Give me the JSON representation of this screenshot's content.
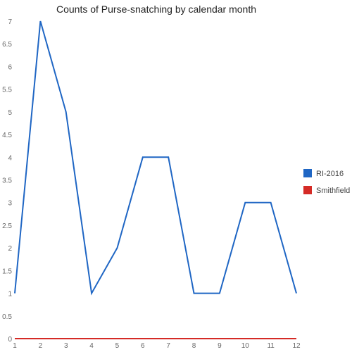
{
  "chart_data": {
    "type": "line",
    "title": "Counts of Purse-snatching by calendar month",
    "xlabel": "",
    "ylabel": "",
    "x": [
      1,
      2,
      3,
      4,
      5,
      6,
      7,
      8,
      9,
      10,
      11,
      12
    ],
    "xlim": [
      1,
      12
    ],
    "ylim": [
      0,
      7
    ],
    "yticks": [
      "0",
      "0.5",
      "1",
      "1.5",
      "2",
      "2.5",
      "3",
      "3.5",
      "4",
      "4.5",
      "5",
      "5.5",
      "6",
      "6.5",
      "7"
    ],
    "ytick_values": [
      0,
      0.5,
      1,
      1.5,
      2,
      2.5,
      3,
      3.5,
      4,
      4.5,
      5,
      5.5,
      6,
      6.5,
      7
    ],
    "xticks": [
      "1",
      "2",
      "3",
      "4",
      "5",
      "6",
      "7",
      "8",
      "9",
      "10",
      "11",
      "12"
    ],
    "grid": false,
    "legend_position": "right",
    "series": [
      {
        "name": "RI-2016",
        "color": "#1f66c4",
        "values": [
          1,
          7,
          5,
          1,
          2,
          4,
          4,
          1,
          1,
          3,
          3,
          1
        ]
      },
      {
        "name": "Smithfield",
        "color": "#d52b26",
        "values": [
          0,
          0,
          0,
          0,
          0,
          0,
          0,
          0,
          0,
          0,
          0,
          0
        ]
      }
    ]
  }
}
